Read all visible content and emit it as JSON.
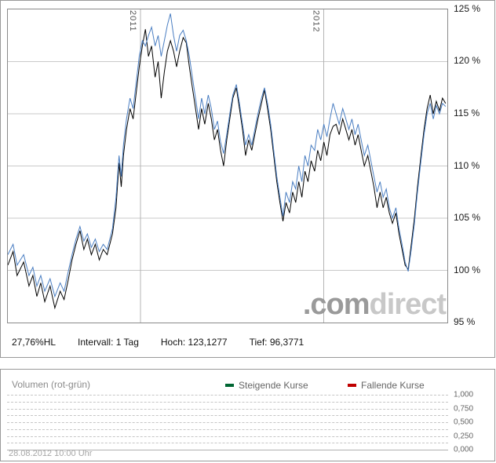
{
  "main_chart": {
    "stats": {
      "hl": "27,76%HL",
      "interval": "Intervall: 1 Tag",
      "high": "Hoch: 123,1277",
      "low": "Tief: 96,3771"
    },
    "watermark": {
      "part1": ".com",
      "part2": "direct"
    },
    "y_ticks": [
      "125 %",
      "120 %",
      "115 %",
      "110 %",
      "105 %",
      "100 %",
      "95 %"
    ]
  },
  "volume_panel": {
    "title": "Volumen (rot-grün)",
    "legend": [
      {
        "label": "Steigende Kurse",
        "color": "#006633"
      },
      {
        "label": "Fallende Kurse",
        "color": "#c00000"
      }
    ],
    "y_ticks": [
      "1,000",
      "0,750",
      "0,500",
      "0,250",
      "0,000"
    ],
    "timestamp": "28.08.2012 10:00 Uhr"
  },
  "chart_data": [
    {
      "type": "line",
      "title": "",
      "ylabel": "%",
      "ylim": [
        95,
        125
      ],
      "y_tick_values": [
        125,
        120,
        115,
        110,
        105,
        100,
        95
      ],
      "x_gridlines": [
        {
          "label": "2011",
          "pos": 30.2
        },
        {
          "label": "2012",
          "pos": 71.9
        }
      ],
      "x_unit": "percent-of-time-range",
      "high": "123,1277",
      "low": "96,3771",
      "interval": "1 Tag",
      "x": [
        0,
        1.2,
        2.1,
        3.6,
        4.8,
        5.7,
        6.6,
        7.5,
        8.4,
        9.6,
        10.7,
        11.9,
        12.8,
        13.7,
        14.6,
        15.5,
        16.4,
        17.3,
        18.1,
        19.0,
        19.9,
        20.8,
        21.7,
        22.6,
        23.5,
        23.8,
        24.6,
        25.3,
        25.8,
        26.3,
        27.0,
        27.8,
        28.5,
        29.2,
        29.9,
        30.6,
        31.3,
        32.0,
        32.7,
        33.5,
        34.2,
        34.9,
        35.6,
        36.3,
        37.0,
        37.7,
        38.4,
        39.1,
        39.9,
        40.6,
        41.3,
        42.0,
        42.7,
        43.4,
        44.1,
        44.8,
        45.6,
        46.3,
        47.0,
        47.7,
        48.4,
        49.1,
        49.8,
        50.5,
        51.2,
        52.0,
        52.7,
        53.4,
        54.1,
        54.8,
        55.5,
        56.2,
        56.9,
        57.7,
        58.4,
        59.1,
        59.8,
        60.5,
        61.2,
        61.9,
        62.6,
        63.3,
        64.1,
        64.8,
        65.5,
        66.2,
        66.9,
        67.6,
        68.3,
        69.0,
        69.8,
        70.5,
        71.2,
        71.9,
        72.6,
        73.3,
        74.0,
        74.7,
        75.4,
        76.2,
        76.9,
        77.6,
        78.3,
        79.0,
        79.7,
        80.4,
        81.1,
        81.9,
        82.6,
        83.3,
        84.0,
        84.7,
        85.4,
        86.1,
        86.8,
        87.5,
        88.3,
        89.0,
        89.7,
        90.4,
        91.1,
        91.8,
        92.5,
        93.2,
        94.0,
        94.7,
        95.4,
        96.1,
        96.8,
        97.5,
        98.2,
        98.9,
        99.6
      ],
      "series": [
        {
          "name": "kurs-schwarz",
          "color": "#000000",
          "values": [
            100.5,
            101.8,
            99.5,
            100.8,
            98.5,
            99.5,
            97.5,
            98.8,
            97.0,
            98.5,
            96.4,
            98.0,
            97.2,
            99.0,
            101.0,
            102.5,
            103.8,
            102.0,
            103.0,
            101.5,
            102.5,
            101.0,
            102.0,
            101.5,
            103.0,
            103.5,
            106.0,
            110.3,
            108.0,
            111.0,
            113.5,
            115.5,
            114.5,
            117.0,
            119.5,
            121.5,
            123.1,
            120.5,
            121.5,
            118.5,
            120.0,
            116.5,
            119.0,
            121.0,
            122.0,
            121.0,
            119.5,
            121.0,
            122.3,
            121.8,
            119.5,
            117.5,
            115.5,
            113.5,
            115.5,
            114.0,
            116.0,
            114.5,
            112.5,
            113.5,
            111.5,
            110.0,
            112.5,
            114.5,
            116.5,
            117.5,
            115.5,
            113.5,
            111.0,
            112.5,
            111.5,
            113.0,
            114.5,
            116.0,
            117.3,
            115.5,
            113.5,
            111.0,
            108.5,
            106.5,
            104.7,
            106.5,
            105.5,
            107.5,
            106.5,
            108.5,
            107.0,
            109.5,
            108.5,
            110.5,
            109.5,
            111.5,
            110.5,
            112.3,
            111.0,
            113.0,
            113.8,
            114.0,
            113.0,
            114.5,
            113.5,
            112.5,
            113.5,
            112.0,
            113.0,
            111.5,
            110.0,
            111.0,
            109.5,
            108.0,
            106.0,
            107.5,
            106.0,
            107.0,
            105.5,
            104.5,
            105.5,
            103.5,
            102.0,
            100.5,
            100.1,
            102.5,
            105.0,
            108.0,
            111.0,
            113.5,
            115.5,
            116.8,
            115.0,
            116.2,
            115.3,
            116.5,
            116.0
          ]
        },
        {
          "name": "vergleich-blau",
          "color": "#4a7ec2",
          "values": [
            101.5,
            102.5,
            100.5,
            101.5,
            99.5,
            100.3,
            98.5,
            99.5,
            98.0,
            99.2,
            97.5,
            98.8,
            98.0,
            99.8,
            101.5,
            103.0,
            104.2,
            102.8,
            103.5,
            102.2,
            103.0,
            101.8,
            102.5,
            102.0,
            103.5,
            104.0,
            107.0,
            111.0,
            109.0,
            112.0,
            114.5,
            116.5,
            115.5,
            118.0,
            120.5,
            122.0,
            121.5,
            122.5,
            123.3,
            121.5,
            122.5,
            120.5,
            122.0,
            123.5,
            124.6,
            122.5,
            121.0,
            122.5,
            123.0,
            122.0,
            120.5,
            118.5,
            116.5,
            114.5,
            116.5,
            115.0,
            116.8,
            115.5,
            113.5,
            114.3,
            112.3,
            111.2,
            113.0,
            115.0,
            116.8,
            117.8,
            116.0,
            114.0,
            112.0,
            113.0,
            112.0,
            113.5,
            115.0,
            116.5,
            117.5,
            116.0,
            114.0,
            111.5,
            109.0,
            107.0,
            105.2,
            107.5,
            106.5,
            108.5,
            107.8,
            110.0,
            108.5,
            111.0,
            110.0,
            112.0,
            111.5,
            113.5,
            112.5,
            114.0,
            112.8,
            114.5,
            116.0,
            115.0,
            114.0,
            115.5,
            114.5,
            113.5,
            114.5,
            113.0,
            114.0,
            112.5,
            111.0,
            112.0,
            110.5,
            109.0,
            107.5,
            108.5,
            107.0,
            107.8,
            106.0,
            105.0,
            106.0,
            104.0,
            102.5,
            100.8,
            99.9,
            102.0,
            104.5,
            107.5,
            110.5,
            113.0,
            115.0,
            116.0,
            114.5,
            115.8,
            115.0,
            116.0,
            115.7
          ]
        }
      ]
    },
    {
      "type": "bar",
      "title": "Volumen (rot-grün)",
      "categories": [],
      "values": [],
      "ylim": [
        0,
        1
      ],
      "y_ticks": [
        "1,000",
        "0,750",
        "0,500",
        "0,250",
        "0,000"
      ],
      "legend": [
        "Steigende Kurse",
        "Fallende Kurse"
      ],
      "legend_position": "top"
    }
  ]
}
